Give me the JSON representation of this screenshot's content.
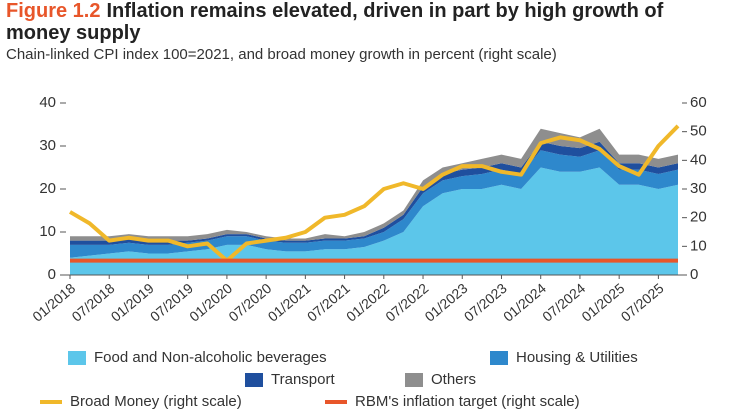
{
  "chart_data": {
    "type": "stacked-area-line",
    "figure_label": "Figure 1.2",
    "title": "Inflation remains elevated, driven in part by high growth of money supply",
    "subtitle": "Chain-linked CPI index 100=2021, and broad money growth in percent (right scale)",
    "categories": [
      "01/2018",
      null,
      "07/2018",
      null,
      "01/2019",
      null,
      "07/2019",
      null,
      "01/2020",
      null,
      "07/2020",
      null,
      "01/2021",
      null,
      "07/2021",
      null,
      "01/2022",
      null,
      "07/2022",
      null,
      "01/2023",
      null,
      "07/2023",
      null,
      "01/2024",
      null,
      "07/2024",
      null,
      "01/2025",
      null,
      "07/2025",
      null
    ],
    "ylim": [
      0,
      40
    ],
    "yticks": [
      0,
      10,
      20,
      30,
      40
    ],
    "y2lim": [
      0,
      60
    ],
    "y2ticks": [
      0,
      10,
      20,
      30,
      40,
      50,
      60
    ],
    "series": [
      {
        "name": "Food and Non-alcoholic  beverages",
        "color": "#5cc6ea",
        "kind": "area",
        "values": [
          4,
          4.5,
          5,
          5.5,
          5,
          5,
          5.5,
          6,
          7,
          7,
          6,
          5.5,
          5.5,
          6,
          6,
          6.5,
          8,
          10,
          16,
          19,
          20,
          20,
          21,
          20,
          25,
          24,
          24,
          25,
          21,
          21,
          20,
          21
        ]
      },
      {
        "name": "Housing & Utilities",
        "color": "#2e88cc",
        "kind": "area",
        "values": [
          3,
          2.5,
          2,
          2,
          2,
          2,
          2,
          2,
          2,
          2,
          2,
          2,
          2,
          2,
          2,
          2,
          2,
          3,
          3,
          3,
          3,
          3.5,
          3.5,
          3.5,
          4,
          4,
          3.5,
          4,
          3.5,
          3.5,
          3.5,
          3.5
        ]
      },
      {
        "name": "Transport",
        "color": "#1f4f9e",
        "kind": "area",
        "values": [
          1,
          1,
          1,
          1,
          1,
          1,
          0.5,
          0.5,
          0.5,
          0.5,
          0.5,
          0.5,
          0.5,
          0.5,
          0.5,
          0.5,
          1,
          1,
          1.5,
          1.5,
          1.5,
          1.5,
          1.5,
          1.5,
          2,
          2,
          2,
          2,
          1.5,
          1.5,
          1.5,
          1.5
        ]
      },
      {
        "name": "Others",
        "color": "#8e8e8e",
        "kind": "area",
        "values": [
          1,
          1,
          1,
          1,
          1,
          1,
          1,
          1,
          1,
          0.5,
          0.5,
          0.5,
          0.5,
          1,
          0.5,
          1,
          1,
          1,
          1.5,
          1.5,
          1.5,
          2,
          2,
          2,
          3,
          3,
          2.5,
          3,
          2,
          2,
          2,
          2
        ]
      },
      {
        "name": "Broad Money (right scale)",
        "color": "#f0b82a",
        "kind": "line",
        "axis": "y2",
        "values": [
          22,
          18,
          12,
          13,
          12,
          12,
          10,
          11,
          5,
          11,
          12,
          13,
          15,
          20,
          21,
          24,
          30,
          32,
          30,
          35,
          38,
          38,
          36,
          35,
          46,
          48,
          47,
          44,
          38,
          35,
          45,
          52
        ]
      },
      {
        "name": "RBM's inflation target (right scale)",
        "color": "#e8562a",
        "kind": "line",
        "axis": "y2",
        "values": [
          5,
          5,
          5,
          5,
          5,
          5,
          5,
          5,
          5,
          5,
          5,
          5,
          5,
          5,
          5,
          5,
          5,
          5,
          5,
          5,
          5,
          5,
          5,
          5,
          5,
          5,
          5,
          5,
          5,
          5,
          5,
          5
        ]
      }
    ]
  }
}
